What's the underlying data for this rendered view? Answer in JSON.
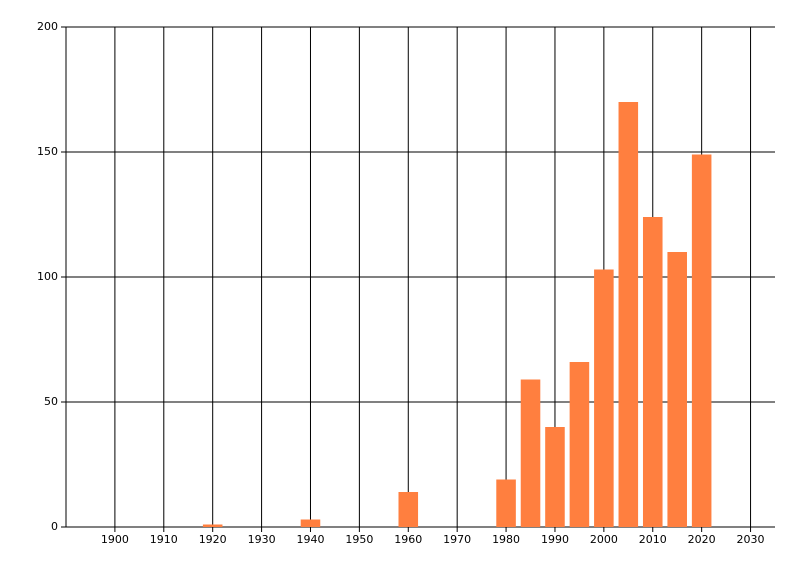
{
  "chart_data": {
    "type": "bar",
    "x": [
      1920,
      1940,
      1960,
      1980,
      1985,
      1990,
      1995,
      2000,
      2005,
      2010,
      2015,
      2020
    ],
    "values": [
      1,
      3,
      14,
      19,
      59,
      40,
      66,
      103,
      170,
      124,
      110,
      149
    ],
    "color": "#ff7f3f",
    "xlim": [
      1890,
      2035
    ],
    "xticks": [
      1900,
      1910,
      1920,
      1930,
      1940,
      1950,
      1960,
      1970,
      1980,
      1990,
      2000,
      2010,
      2020,
      2030
    ],
    "ylim": [
      0,
      200
    ],
    "yticks": [
      0,
      50,
      100,
      150,
      200
    ],
    "grid": true
  }
}
